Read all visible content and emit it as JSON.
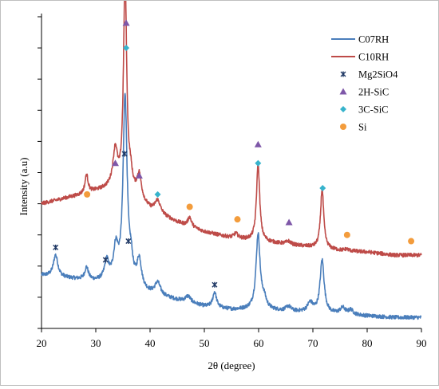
{
  "chart_data": {
    "type": "line",
    "xlabel": "2θ (degree)",
    "ylabel": "Intensity (a.u)",
    "xlim": [
      20,
      90
    ],
    "x_ticks": [
      "20",
      "30",
      "40",
      "50",
      "60",
      "70",
      "80",
      "90"
    ],
    "x_tick_values": [
      20,
      30,
      40,
      50,
      60,
      70,
      80,
      90
    ],
    "y_ticks_labeled": false,
    "legend_position": "top-right",
    "series": [
      {
        "name": "C07RH",
        "color": "#4a7ebb",
        "baseline": [
          [
            20,
            0.17
          ],
          [
            25,
            0.16
          ],
          [
            30,
            0.15
          ],
          [
            33,
            0.15
          ],
          [
            40,
            0.11
          ],
          [
            45,
            0.09
          ],
          [
            50,
            0.07
          ],
          [
            55,
            0.06
          ],
          [
            60,
            0.06
          ],
          [
            65,
            0.055
          ],
          [
            70,
            0.05
          ],
          [
            75,
            0.045
          ],
          [
            80,
            0.04
          ],
          [
            85,
            0.035
          ],
          [
            90,
            0.035
          ]
        ],
        "peaks": [
          [
            22.6,
            0.07,
            0.5
          ],
          [
            28.3,
            0.04,
            0.4
          ],
          [
            32.0,
            0.06,
            0.45
          ],
          [
            33.7,
            0.1,
            0.5
          ],
          [
            35.4,
            0.6,
            0.45
          ],
          [
            36.5,
            0.06,
            0.4
          ],
          [
            38.0,
            0.09,
            0.5
          ],
          [
            41.4,
            0.04,
            0.6
          ],
          [
            47.0,
            0.02,
            0.6
          ],
          [
            51.9,
            0.05,
            0.4
          ],
          [
            59.9,
            0.24,
            0.45
          ],
          [
            61.0,
            0.03,
            0.5
          ],
          [
            65.5,
            0.015,
            0.5
          ],
          [
            69.5,
            0.03,
            0.6
          ],
          [
            71.7,
            0.17,
            0.45
          ],
          [
            75.5,
            0.02,
            0.6
          ],
          [
            77.0,
            0.015,
            0.5
          ]
        ]
      },
      {
        "name": "C10RH",
        "color": "#be4b48",
        "baseline": [
          [
            20,
            0.4
          ],
          [
            25,
            0.42
          ],
          [
            28,
            0.43
          ],
          [
            30,
            0.44
          ],
          [
            33,
            0.45
          ],
          [
            37,
            0.42
          ],
          [
            40,
            0.38
          ],
          [
            45,
            0.34
          ],
          [
            50,
            0.31
          ],
          [
            55,
            0.29
          ],
          [
            60,
            0.28
          ],
          [
            65,
            0.27
          ],
          [
            70,
            0.26
          ],
          [
            75,
            0.25
          ],
          [
            80,
            0.245
          ],
          [
            85,
            0.235
          ],
          [
            90,
            0.235
          ]
        ],
        "peaks": [
          [
            28.3,
            0.06,
            0.35
          ],
          [
            33.6,
            0.12,
            0.5
          ],
          [
            35.4,
            0.69,
            0.35
          ],
          [
            36.4,
            0.05,
            0.4
          ],
          [
            38.0,
            0.08,
            0.5
          ],
          [
            41.4,
            0.04,
            0.6
          ],
          [
            47.3,
            0.03,
            0.4
          ],
          [
            55.8,
            0.015,
            0.5
          ],
          [
            59.9,
            0.25,
            0.35
          ],
          [
            65.5,
            0.01,
            0.5
          ],
          [
            71.7,
            0.19,
            0.35
          ],
          [
            76.2,
            0.005,
            0.5
          ]
        ]
      }
    ],
    "phase_markers": [
      {
        "name": "Mg2SiO4",
        "symbol": "x",
        "color": "#1f3864",
        "points": [
          [
            22.6,
            0.26
          ],
          [
            31.8,
            0.22
          ],
          [
            35.3,
            0.56
          ],
          [
            36.0,
            0.28
          ],
          [
            51.9,
            0.14
          ]
        ]
      },
      {
        "name": "2H-SiC",
        "symbol": "triangle",
        "color": "#7e57a8",
        "points": [
          [
            35.6,
            0.98
          ],
          [
            33.6,
            0.53
          ],
          [
            38.0,
            0.49
          ],
          [
            59.9,
            0.59
          ],
          [
            65.6,
            0.34
          ]
        ]
      },
      {
        "name": "3C-SiC",
        "symbol": "diamond",
        "color": "#37b3cc",
        "points": [
          [
            35.6,
            0.9
          ],
          [
            59.9,
            0.53
          ],
          [
            41.4,
            0.43
          ],
          [
            71.8,
            0.45
          ]
        ]
      },
      {
        "name": "Si",
        "symbol": "circle",
        "color": "#f39c3c",
        "points": [
          [
            28.4,
            0.43
          ],
          [
            47.3,
            0.39
          ],
          [
            56.1,
            0.35
          ],
          [
            76.3,
            0.3
          ],
          [
            88.1,
            0.28
          ]
        ]
      }
    ]
  }
}
